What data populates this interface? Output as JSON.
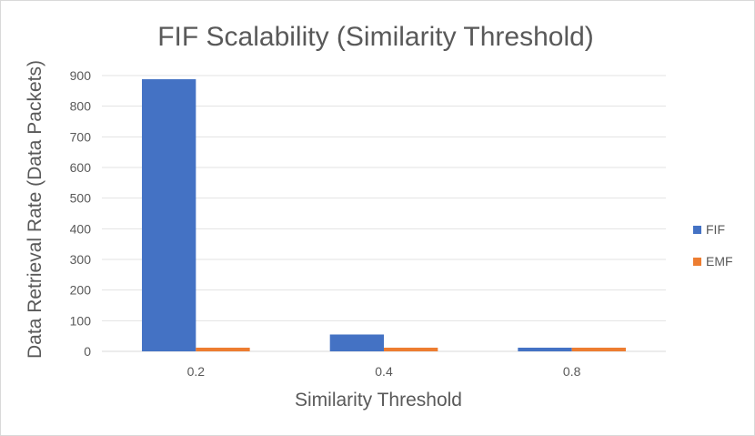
{
  "chart_data": {
    "type": "bar",
    "title": "FIF Scalability (Similarity Threshold)",
    "xlabel": "Similarity Threshold",
    "ylabel": "Data Retrieval Rate (Data Packets)",
    "categories": [
      "0.2",
      "0.4",
      "0.8"
    ],
    "series": [
      {
        "name": "FIF",
        "values": [
          888,
          55,
          12
        ],
        "color": "#4472C4"
      },
      {
        "name": "EMF",
        "values": [
          12,
          12,
          12
        ],
        "color": "#ED7D31"
      }
    ],
    "ylim": [
      0,
      900
    ],
    "yticks": [
      0,
      100,
      200,
      300,
      400,
      500,
      600,
      700,
      800,
      900
    ],
    "grid": true,
    "legend_position": "right"
  }
}
